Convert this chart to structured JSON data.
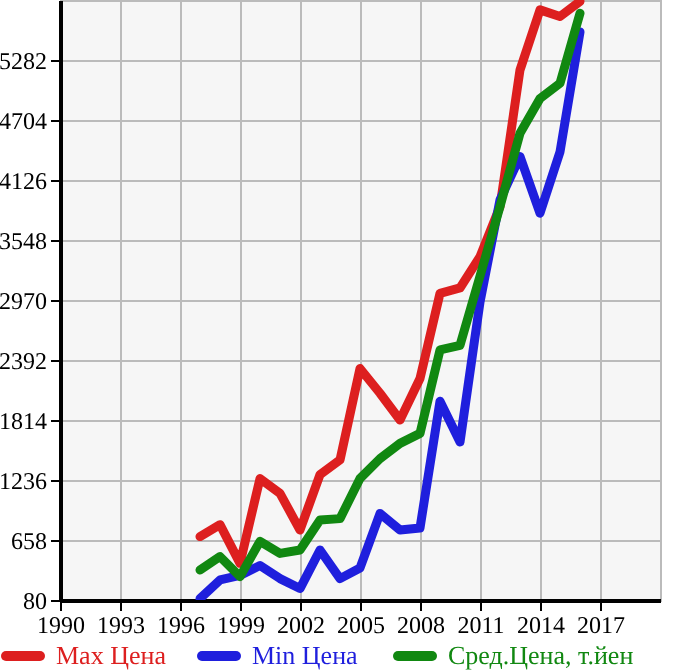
{
  "chart_data": {
    "type": "line",
    "x": [
      1997,
      1998,
      1999,
      2000,
      2001,
      2002,
      2003,
      2004,
      2005,
      2006,
      2007,
      2008,
      2009,
      2010,
      2011,
      2012,
      2013,
      2014,
      2015,
      2016
    ],
    "series": [
      {
        "name": "Max Цена",
        "color": "#dd1f1f",
        "values": [
          691,
          806,
          433,
          1250,
          1107,
          754,
          1288,
          1429,
          2310,
          2072,
          1814,
          2214,
          3034,
          3086,
          3388,
          3870,
          5186,
          5765,
          5701,
          5847
        ]
      },
      {
        "name": "Min Цена",
        "color": "#1f1fdd",
        "values": [
          93,
          273,
          317,
          413,
          286,
          190,
          562,
          286,
          388,
          914,
          754,
          774,
          1994,
          1602,
          2950,
          3934,
          4352,
          3806,
          4397,
          5552
        ]
      },
      {
        "name": "Сред.Цена, т.йен",
        "color": "#118811",
        "values": [
          369,
          498,
          305,
          645,
          529,
          562,
          851,
          864,
          1250,
          1442,
          1589,
          1685,
          2489,
          2533,
          3200,
          3870,
          4576,
          4911,
          5058,
          5732
        ]
      }
    ],
    "xlim": [
      1990,
      2020
    ],
    "xticks": [
      1990,
      1993,
      1996,
      1999,
      2002,
      2005,
      2008,
      2011,
      2014,
      2017
    ],
    "ylim": [
      80,
      5860
    ],
    "yticks": [
      80,
      658,
      1236,
      1814,
      2392,
      2970,
      3548,
      4126,
      4704,
      5282
    ],
    "grid": true,
    "legend": "bottom",
    "marker": "none",
    "line_style": "solid"
  }
}
